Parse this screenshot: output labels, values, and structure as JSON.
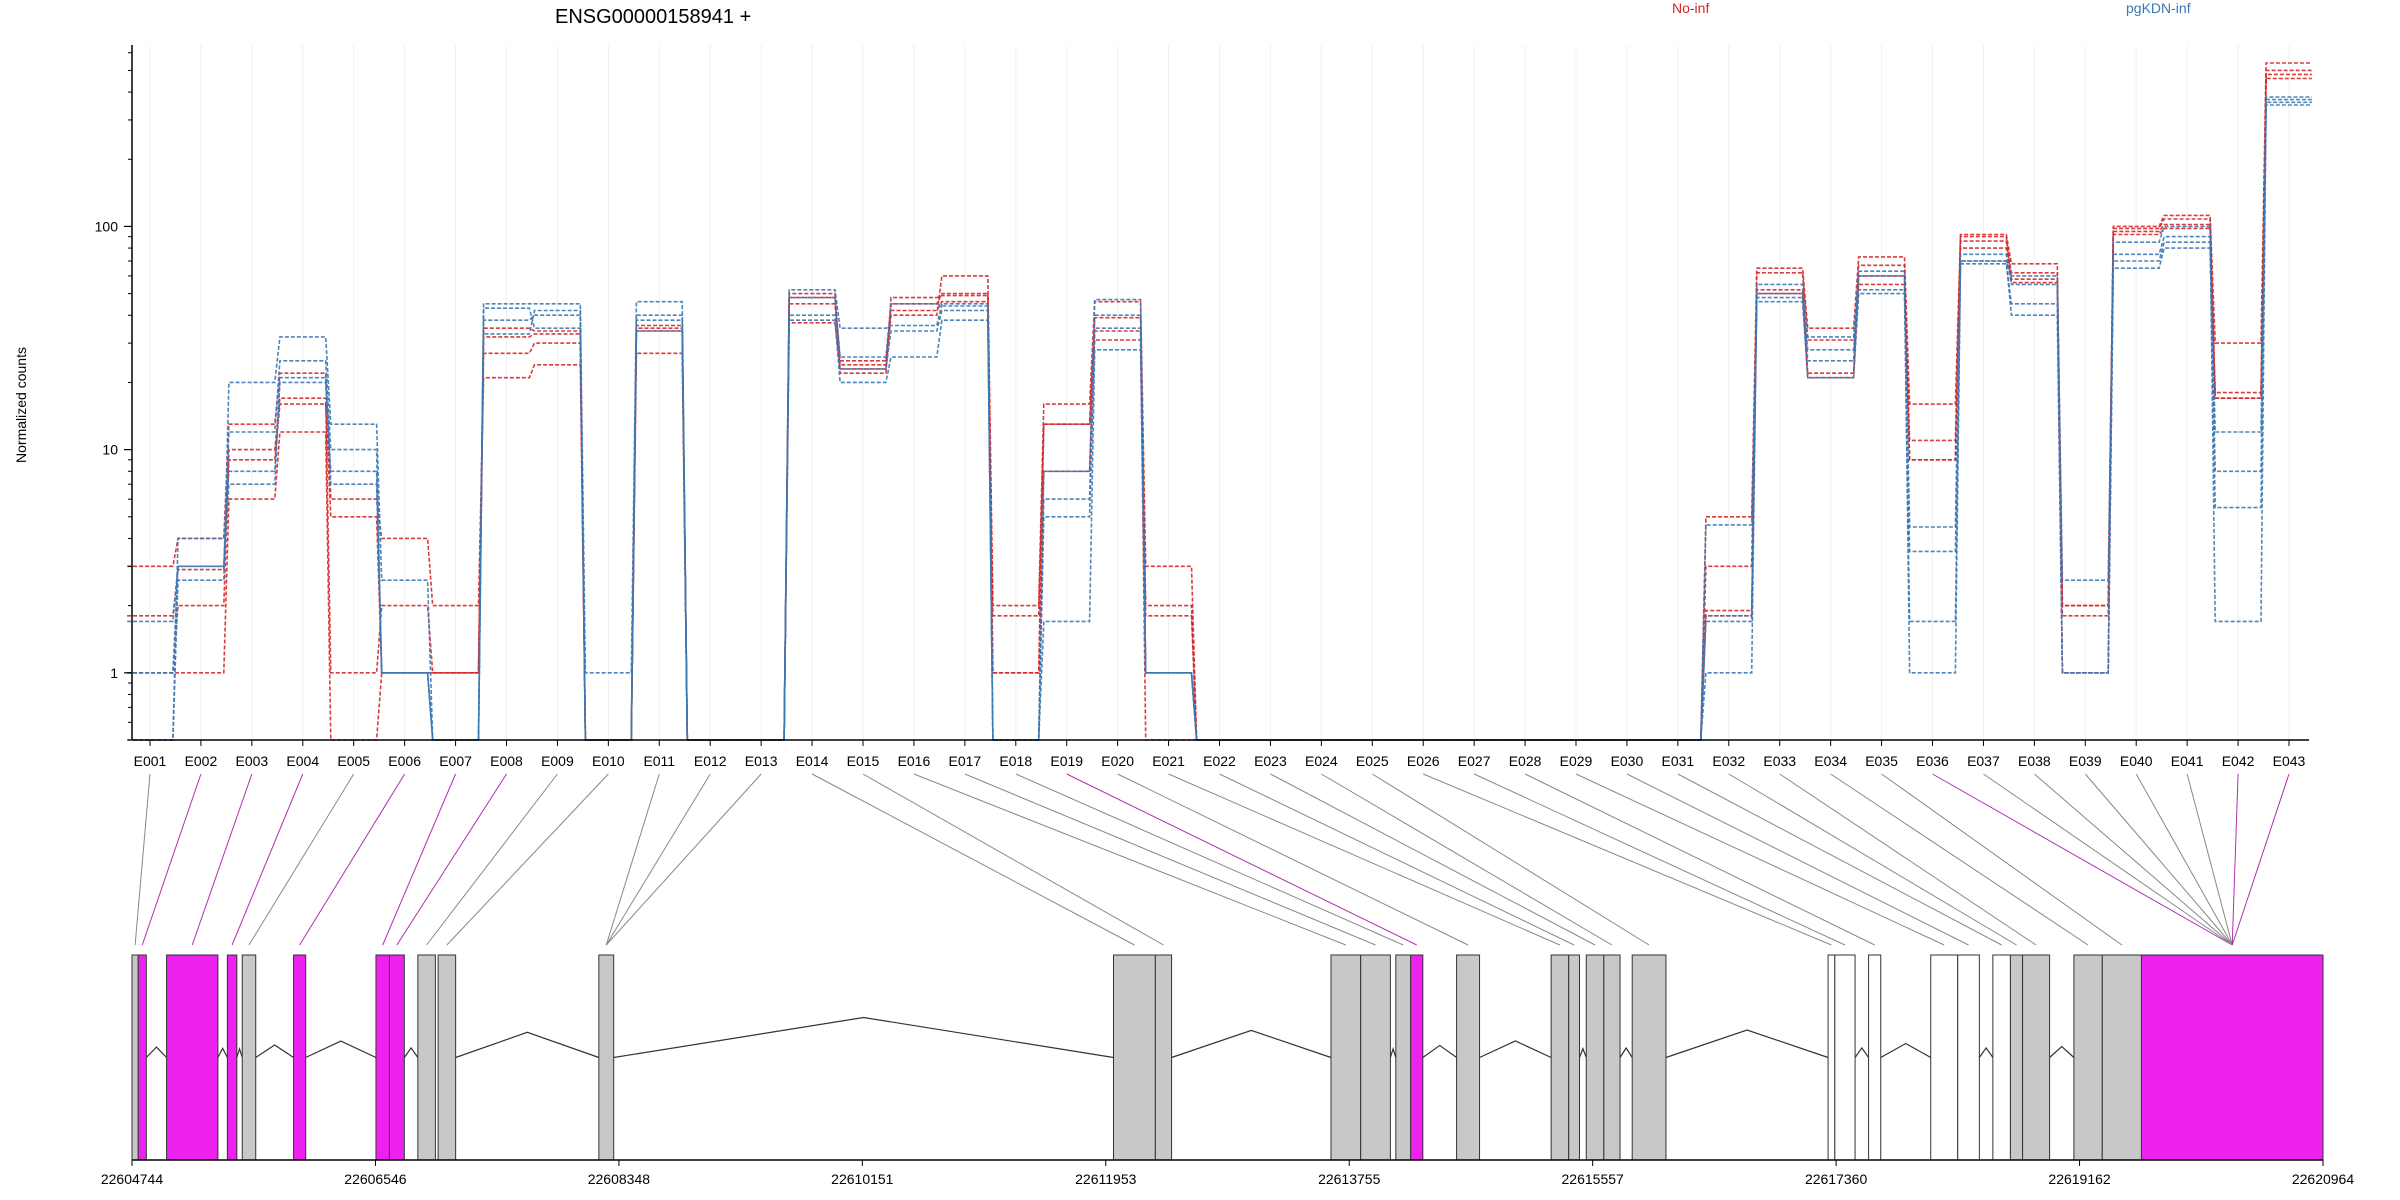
{
  "chart_data": {
    "type": "line",
    "title": "ENSG00000158941 +",
    "ylabel": "Normalized counts",
    "yscale": "log",
    "ylim": [
      0.5,
      650
    ],
    "yticks": [
      "1",
      "10",
      "100"
    ],
    "ytick_values": [
      1,
      10,
      100
    ],
    "grid": "vertical",
    "legend_placement": "top",
    "legend": [
      {
        "label": "No-inf",
        "color": "#d62728"
      },
      {
        "label": "pgKDN-inf",
        "color": "#3b78b4"
      }
    ],
    "exons": [
      "E001",
      "E002",
      "E003",
      "E004",
      "E005",
      "E006",
      "E007",
      "E008",
      "E009",
      "E010",
      "E011",
      "E012",
      "E013",
      "E014",
      "E015",
      "E016",
      "E017",
      "E018",
      "E019",
      "E020",
      "E021",
      "E022",
      "E023",
      "E024",
      "E025",
      "E026",
      "E027",
      "E028",
      "E029",
      "E030",
      "E031",
      "E032",
      "E033",
      "E034",
      "E035",
      "E036",
      "E037",
      "E038",
      "E039",
      "E040",
      "E041",
      "E042",
      "E043"
    ],
    "series": [
      {
        "group": "No-inf",
        "color": "#d62728",
        "values": [
          3.0,
          4.0,
          13,
          22,
          6,
          4,
          2,
          21,
          24,
          0.5,
          27,
          0.5,
          0.5,
          37,
          23,
          40,
          60,
          2,
          16,
          46,
          3,
          0.5,
          0.5,
          0.5,
          0.5,
          0.5,
          0.5,
          0.5,
          0.5,
          0.5,
          0.5,
          5,
          65,
          35,
          73,
          16,
          92,
          68,
          2,
          100,
          112,
          30,
          540
        ]
      },
      {
        "group": "No-inf",
        "color": "#d62728",
        "values": [
          1.0,
          1.0,
          6,
          12,
          0.5,
          1,
          1,
          27,
          30,
          0.5,
          34,
          0.5,
          0.5,
          45,
          24,
          45,
          50,
          1,
          13,
          31,
          0.5,
          0.5,
          0.5,
          0.5,
          0.5,
          0.5,
          0.5,
          0.5,
          0.5,
          0.5,
          0.5,
          3,
          62,
          31,
          55,
          11,
          86,
          62,
          1,
          95,
          102,
          18,
          500
        ]
      },
      {
        "group": "No-inf",
        "color": "#d62728",
        "values": [
          1.0,
          2.0,
          10,
          17,
          1,
          2,
          1,
          32,
          33,
          0.5,
          36,
          0.5,
          0.5,
          48,
          25,
          42,
          46,
          1,
          8,
          34,
          2,
          0.5,
          0.5,
          0.5,
          0.5,
          0.5,
          0.5,
          0.5,
          0.5,
          0.5,
          0.5,
          1.9,
          52,
          22,
          67,
          9,
          80,
          58,
          2,
          98,
          108,
          17,
          460
        ]
      },
      {
        "group": "No-inf",
        "color": "#d62728",
        "values": [
          1.8,
          2.9,
          9,
          16,
          5,
          1,
          1,
          35,
          34,
          0.5,
          35,
          0.5,
          0.5,
          50,
          22,
          48,
          49,
          1.8,
          13,
          39,
          1.8,
          0.5,
          0.5,
          0.5,
          0.5,
          0.5,
          0.5,
          0.5,
          0.5,
          0.5,
          0.5,
          1.8,
          50,
          21,
          60,
          9,
          90,
          56,
          1.8,
          92,
          98,
          17,
          480
        ]
      },
      {
        "group": "pgKDN-inf",
        "color": "#3b78b4",
        "values": [
          0.5,
          2.6,
          20,
          32,
          13,
          2.6,
          0.5,
          45,
          45,
          1,
          46,
          0.5,
          0.5,
          52,
          35,
          36,
          45,
          0.5,
          8,
          47,
          1,
          0.5,
          0.5,
          0.5,
          0.5,
          0.5,
          0.5,
          0.5,
          0.5,
          0.5,
          0.5,
          1,
          50,
          32,
          63,
          1,
          70,
          60,
          2.6,
          85,
          100,
          1.7,
          370
        ]
      },
      {
        "group": "pgKDN-inf",
        "color": "#3b78b4",
        "values": [
          1.7,
          3.0,
          12,
          25,
          10,
          1,
          0.5,
          38,
          40,
          0.5,
          40,
          0.5,
          0.5,
          48,
          26,
          45,
          44,
          0.5,
          6,
          40,
          1,
          0.5,
          0.5,
          0.5,
          0.5,
          0.5,
          0.5,
          0.5,
          0.5,
          0.5,
          0.5,
          1.7,
          55,
          25,
          60,
          4.5,
          75,
          55,
          1,
          75,
          90,
          12,
          380
        ]
      },
      {
        "group": "pgKDN-inf",
        "color": "#3b78b4",
        "values": [
          0.5,
          4.0,
          8,
          20,
          8,
          1,
          0.5,
          43,
          35,
          0.5,
          34,
          0.5,
          0.5,
          38,
          20,
          26,
          38,
          0.5,
          1.7,
          28,
          1,
          0.5,
          0.5,
          0.5,
          0.5,
          0.5,
          0.5,
          0.5,
          0.5,
          0.5,
          0.5,
          4.6,
          46,
          21,
          50,
          1.7,
          70,
          40,
          1,
          65,
          80,
          8,
          350
        ]
      },
      {
        "group": "pgKDN-inf",
        "color": "#3b78b4",
        "values": [
          1.0,
          3.0,
          7,
          21,
          7,
          1,
          0.5,
          33,
          42,
          0.5,
          38,
          0.5,
          0.5,
          40,
          23,
          34,
          42,
          0.5,
          5,
          35,
          1,
          0.5,
          0.5,
          0.5,
          0.5,
          0.5,
          0.5,
          0.5,
          0.5,
          0.5,
          0.5,
          1.8,
          48,
          28,
          52,
          3.5,
          68,
          45,
          1,
          70,
          85,
          5.5,
          360
        ]
      }
    ],
    "gene_model": {
      "coord_ticks": [
        "22604744",
        "22606546",
        "22608348",
        "22610151",
        "22611953",
        "22613755",
        "22615557",
        "22617360",
        "22619162",
        "22620964"
      ],
      "exon_colors": {
        "significant": "#ee22ee",
        "tested": "#c8c8c8",
        "other": "#ffffff"
      },
      "exon_status": [
        "tested",
        "significant",
        "significant",
        "significant",
        "tested",
        "significant",
        "significant",
        "significant",
        "tested",
        "tested",
        "tested",
        "tested",
        "tested",
        "tested",
        "tested",
        "tested",
        "tested",
        "tested",
        "significant",
        "tested",
        "tested",
        "tested",
        "tested",
        "tested",
        "tested",
        "other",
        "other",
        "other",
        "other",
        "other",
        "other",
        "tested",
        "tested",
        "tested",
        "tested",
        "significant",
        "tested",
        "tested",
        "tested",
        "tested",
        "tested",
        "significant",
        "significant"
      ]
    }
  }
}
